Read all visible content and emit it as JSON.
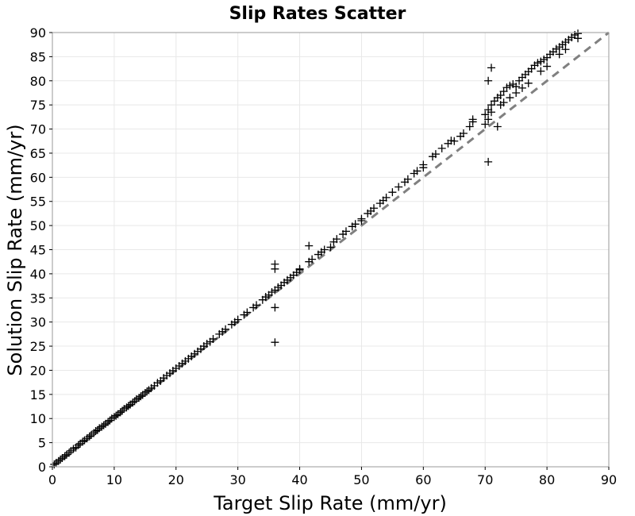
{
  "chart_data": {
    "type": "scatter",
    "title": "Slip Rates Scatter",
    "xlabel": "Target Slip Rate (mm/yr)",
    "ylabel": "Solution Slip Rate (mm/yr)",
    "xlim": [
      0,
      90
    ],
    "ylim": [
      0,
      90
    ],
    "xticks": [
      0,
      10,
      20,
      30,
      40,
      50,
      60,
      70,
      80,
      90
    ],
    "yticks": [
      0,
      5,
      10,
      15,
      20,
      25,
      30,
      35,
      40,
      45,
      50,
      55,
      60,
      65,
      70,
      75,
      80,
      85,
      90
    ],
    "grid": true,
    "legend": "none",
    "marker": "plus",
    "colors": {
      "points": "#000000",
      "reference_line": "#808080",
      "grid": "#e8e8e8",
      "frame": "#9a9a9a"
    },
    "reference_line": {
      "style": "dashed",
      "from": [
        0,
        0
      ],
      "to": [
        90,
        90
      ]
    },
    "series": [
      {
        "points": [
          [
            0.3,
            0.5
          ],
          [
            0.6,
            0.8
          ],
          [
            1.0,
            1.2
          ],
          [
            1.3,
            1.5
          ],
          [
            1.6,
            1.8
          ],
          [
            2.0,
            2.2
          ],
          [
            2.3,
            2.5
          ],
          [
            2.7,
            2.9
          ],
          [
            3.0,
            3.3
          ],
          [
            3.4,
            3.7
          ],
          [
            3.8,
            4.0
          ],
          [
            4.2,
            4.5
          ],
          [
            4.5,
            4.8
          ],
          [
            4.9,
            5.2
          ],
          [
            5.2,
            5.5
          ],
          [
            5.6,
            5.9
          ],
          [
            6.0,
            6.3
          ],
          [
            6.3,
            6.6
          ],
          [
            6.7,
            7.0
          ],
          [
            7.0,
            7.4
          ],
          [
            7.3,
            7.6
          ],
          [
            7.6,
            8.0
          ],
          [
            8.0,
            8.3
          ],
          [
            8.3,
            8.6
          ],
          [
            8.6,
            8.9
          ],
          [
            9.0,
            9.3
          ],
          [
            9.3,
            9.6
          ],
          [
            9.6,
            10.0
          ],
          [
            10.0,
            10.3
          ],
          [
            10.3,
            10.6
          ],
          [
            10.6,
            10.9
          ],
          [
            11.0,
            11.3
          ],
          [
            11.3,
            11.6
          ],
          [
            11.6,
            12.0
          ],
          [
            12.0,
            12.3
          ],
          [
            12.3,
            12.6
          ],
          [
            12.6,
            12.9
          ],
          [
            13.0,
            13.3
          ],
          [
            13.3,
            13.6
          ],
          [
            13.6,
            14.0
          ],
          [
            14.0,
            14.3
          ],
          [
            14.3,
            14.6
          ],
          [
            14.6,
            14.9
          ],
          [
            15.0,
            15.3
          ],
          [
            15.3,
            15.6
          ],
          [
            15.6,
            15.9
          ],
          [
            16.0,
            16.3
          ],
          [
            16.5,
            16.8
          ],
          [
            17.0,
            17.4
          ],
          [
            17.5,
            17.8
          ],
          [
            18.0,
            18.4
          ],
          [
            18.5,
            18.9
          ],
          [
            19.0,
            19.4
          ],
          [
            19.5,
            19.9
          ],
          [
            20.0,
            20.4
          ],
          [
            20.5,
            20.9
          ],
          [
            21.0,
            21.4
          ],
          [
            21.5,
            21.9
          ],
          [
            22.0,
            22.4
          ],
          [
            22.5,
            22.9
          ],
          [
            23.0,
            23.4
          ],
          [
            23.5,
            23.9
          ],
          [
            24.0,
            24.4
          ],
          [
            24.5,
            25.0
          ],
          [
            25.0,
            25.5
          ],
          [
            25.5,
            25.9
          ],
          [
            26.0,
            26.5
          ],
          [
            27.0,
            27.5
          ],
          [
            27.5,
            28.0
          ],
          [
            28.0,
            28.5
          ],
          [
            29.0,
            29.5
          ],
          [
            29.5,
            30.0
          ],
          [
            30.0,
            30.5
          ],
          [
            31.0,
            31.5
          ],
          [
            31.5,
            32.0
          ],
          [
            32.5,
            33.0
          ],
          [
            33.0,
            33.5
          ],
          [
            34.0,
            34.6
          ],
          [
            34.5,
            35.2
          ],
          [
            35.0,
            35.6
          ],
          [
            35.5,
            36.2
          ],
          [
            36.0,
            36.6
          ],
          [
            36.5,
            37.2
          ],
          [
            37.0,
            37.6
          ],
          [
            37.5,
            38.2
          ],
          [
            38.0,
            38.7
          ],
          [
            38.5,
            39.2
          ],
          [
            39.0,
            39.7
          ],
          [
            39.5,
            40.3
          ],
          [
            40.0,
            40.8
          ],
          [
            41.5,
            42.5
          ],
          [
            42.0,
            43.0
          ],
          [
            43.0,
            44.0
          ],
          [
            43.5,
            44.5
          ],
          [
            44.0,
            45.0
          ],
          [
            45.5,
            46.6
          ],
          [
            46.0,
            47.2
          ],
          [
            47.0,
            48.2
          ],
          [
            47.5,
            48.8
          ],
          [
            48.5,
            49.8
          ],
          [
            49.0,
            50.3
          ],
          [
            50.0,
            51.4
          ],
          [
            51.0,
            52.5
          ],
          [
            51.5,
            53.0
          ],
          [
            52.0,
            53.6
          ],
          [
            53.0,
            54.6
          ],
          [
            53.5,
            55.2
          ],
          [
            54.0,
            55.8
          ],
          [
            55.0,
            56.9
          ],
          [
            56.0,
            58.0
          ],
          [
            57.0,
            59.0
          ],
          [
            57.5,
            59.6
          ],
          [
            58.5,
            60.8
          ],
          [
            59.0,
            61.3
          ],
          [
            60.0,
            62.6
          ],
          [
            61.5,
            64.3
          ],
          [
            62.0,
            64.8
          ],
          [
            63.0,
            66.0
          ],
          [
            64.0,
            67.0
          ],
          [
            64.5,
            67.6
          ],
          [
            66.0,
            68.5
          ],
          [
            66.5,
            69.1
          ],
          [
            67.5,
            70.5
          ],
          [
            68.0,
            71.5
          ],
          [
            70.0,
            73.0
          ],
          [
            70.5,
            74.0
          ],
          [
            71.0,
            75.0
          ],
          [
            71.5,
            75.8
          ],
          [
            72.0,
            76.5
          ],
          [
            72.5,
            77.0
          ],
          [
            73.0,
            77.8
          ],
          [
            73.5,
            78.6
          ],
          [
            74.0,
            79.0
          ],
          [
            74.5,
            79.3
          ],
          [
            75.0,
            78.8
          ],
          [
            75.5,
            80.0
          ],
          [
            76.0,
            80.7
          ],
          [
            76.5,
            81.3
          ],
          [
            77.0,
            81.9
          ],
          [
            77.5,
            82.5
          ],
          [
            78.0,
            83.2
          ],
          [
            78.5,
            83.7
          ],
          [
            79.0,
            84.0
          ],
          [
            79.5,
            84.4
          ],
          [
            80.0,
            84.8
          ],
          [
            80.5,
            85.5
          ],
          [
            81.0,
            86.0
          ],
          [
            81.5,
            86.6
          ],
          [
            82.0,
            87.0
          ],
          [
            82.5,
            87.5
          ],
          [
            83.0,
            88.0
          ],
          [
            83.5,
            88.5
          ],
          [
            84.0,
            89.0
          ],
          [
            84.5,
            89.5
          ],
          [
            85.0,
            88.8
          ],
          [
            85.0,
            89.8
          ],
          [
            83.0,
            86.5
          ],
          [
            82.0,
            85.5
          ],
          [
            80.0,
            83.0
          ],
          [
            79.0,
            82.0
          ],
          [
            77.0,
            79.5
          ],
          [
            76.0,
            78.5
          ],
          [
            75.0,
            77.5
          ],
          [
            74.0,
            76.5
          ],
          [
            73.0,
            75.5
          ],
          [
            72.5,
            75.0
          ],
          [
            71.0,
            73.5
          ],
          [
            70.5,
            72.0
          ],
          [
            36.0,
            42.0
          ],
          [
            36.0,
            41.0
          ],
          [
            36.0,
            33.0
          ],
          [
            36.0,
            25.8
          ],
          [
            41.5,
            45.8
          ],
          [
            70.5,
            63.2
          ],
          [
            71.0,
            82.7
          ],
          [
            70.5,
            80.0
          ],
          [
            72.0,
            70.5
          ],
          [
            70.0,
            71.0
          ],
          [
            68.0,
            72.0
          ],
          [
            40.0,
            41.0
          ],
          [
            45.0,
            45.5
          ],
          [
            50.0,
            51.0
          ],
          [
            60.0,
            62.0
          ],
          [
            65.0,
            67.5
          ]
        ]
      }
    ]
  }
}
